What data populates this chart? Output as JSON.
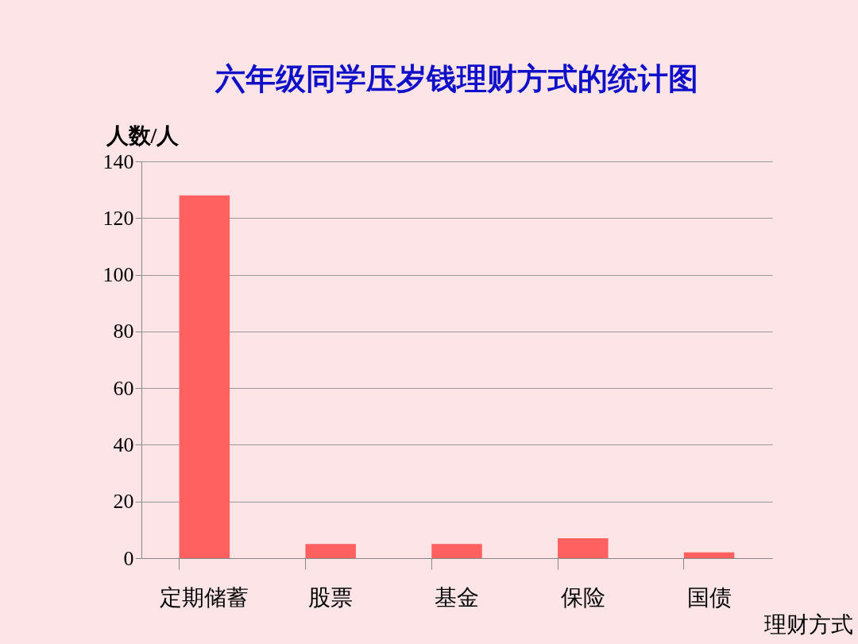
{
  "chart_data": {
    "type": "bar",
    "title": "六年级同学压岁钱理财方式的统计图",
    "xlabel": "理财方式",
    "ylabel": "人数/人",
    "categories": [
      "定期储蓄",
      "股票",
      "基金",
      "保险",
      "国债"
    ],
    "values": [
      128,
      5,
      5,
      7,
      2
    ],
    "color": "#ff6161",
    "ylim": [
      0,
      140
    ],
    "yticks": [
      0,
      20,
      40,
      60,
      80,
      100,
      120,
      140
    ],
    "grid": "y"
  }
}
